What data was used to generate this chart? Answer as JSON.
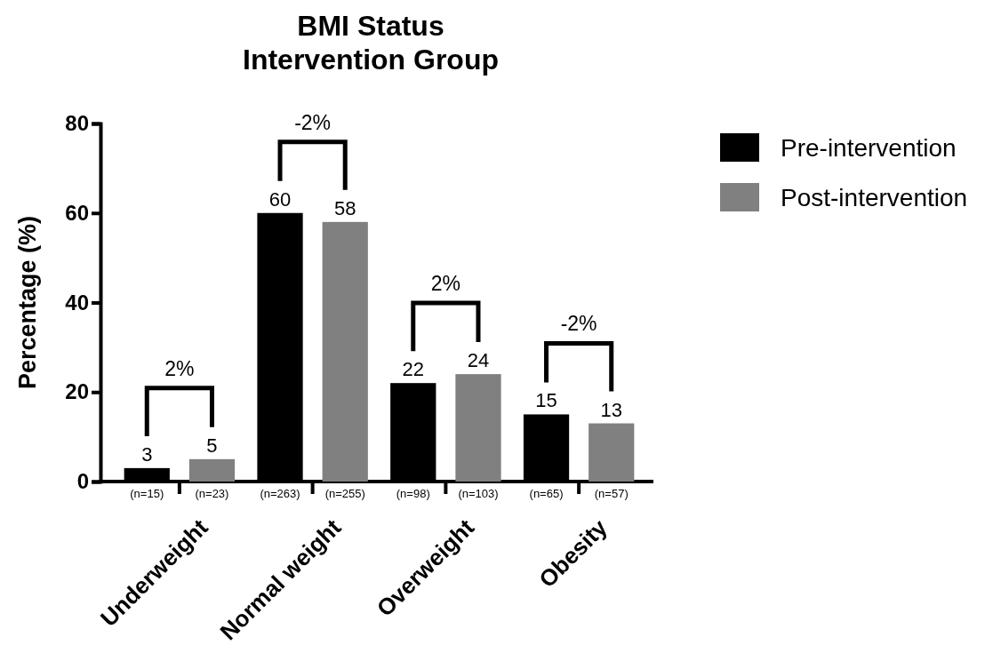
{
  "chart_data": {
    "type": "bar",
    "title": "BMI Status\nIntervention Group",
    "ylabel": "Percentage (%)",
    "categories": [
      "Underweight",
      "Normal weight",
      "Overweight",
      "Obesity"
    ],
    "series": [
      {
        "name": "Pre-intervention",
        "color": "#000000",
        "values": [
          3,
          60,
          22,
          15
        ]
      },
      {
        "name": "Post-intervention",
        "color": "#808080",
        "values": [
          5,
          58,
          24,
          13
        ]
      }
    ],
    "ylim": [
      0,
      80
    ],
    "yticks": [
      0,
      20,
      40,
      60,
      80
    ],
    "grid": false,
    "legend": "top right",
    "data_labels": true,
    "annotations": [
      "2%",
      "-2%",
      "2%",
      "-2%",
      "(n=15)",
      "(n=23)",
      "(n=263)",
      "(n=255)",
      "(n=98)",
      "(n=103)",
      "(n=65)",
      "(n=57)"
    ]
  }
}
